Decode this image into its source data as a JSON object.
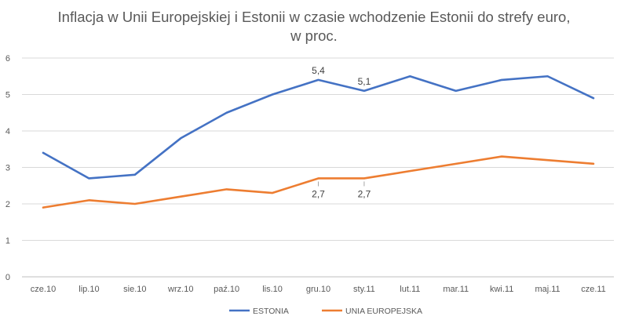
{
  "chart_data": {
    "type": "line",
    "title_lines": [
      "Inflacja w Unii Europejskiej i Estonii w czasie wchodzenie Estonii do strefy euro,",
      "w proc."
    ],
    "categories": [
      "cze.10",
      "lip.10",
      "sie.10",
      "wrz.10",
      "paź.10",
      "lis.10",
      "gru.10",
      "sty.11",
      "lut.11",
      "mar.11",
      "kwi.11",
      "maj.11",
      "cze.11"
    ],
    "ylim": [
      0,
      6
    ],
    "yticks": [
      0,
      1,
      2,
      3,
      4,
      5,
      6
    ],
    "grid": true,
    "legend_position": "bottom",
    "series": [
      {
        "name": "ESTONIA",
        "color": "#4472C4",
        "values": [
          3.4,
          2.7,
          2.8,
          3.8,
          4.5,
          5.0,
          5.4,
          5.1,
          5.5,
          5.1,
          5.4,
          5.5,
          4.9
        ]
      },
      {
        "name": "UNIA EUROPEJSKA",
        "color": "#ED7D31",
        "values": [
          1.9,
          2.1,
          2.0,
          2.2,
          2.4,
          2.3,
          2.7,
          2.7,
          2.9,
          3.1,
          3.3,
          3.2,
          3.1
        ]
      }
    ],
    "annotations": [
      {
        "series": 0,
        "index": 6,
        "text": "5,4",
        "placement": "above"
      },
      {
        "series": 0,
        "index": 7,
        "text": "5,1",
        "placement": "above"
      },
      {
        "series": 1,
        "index": 6,
        "text": "2,7",
        "placement": "below"
      },
      {
        "series": 1,
        "index": 7,
        "text": "2,7",
        "placement": "below"
      }
    ]
  }
}
